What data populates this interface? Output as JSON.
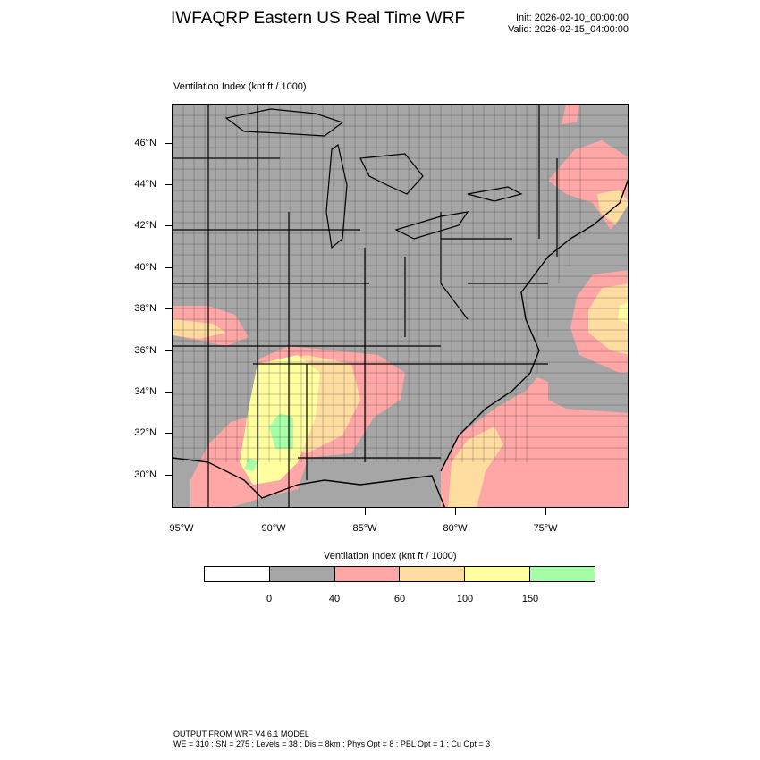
{
  "header": {
    "title": "IWFAQRP Eastern US Real Time WRF",
    "init": "Init: 2026-02-10_00:00:00",
    "valid": "Valid: 2026-02-15_04:00:00"
  },
  "plot": {
    "label": "Ventilation Index   (knt ft / 1000)",
    "lat_labels": [
      "46°N",
      "44°N",
      "42°N",
      "40°N",
      "38°N",
      "36°N",
      "34°N",
      "32°N",
      "30°N"
    ],
    "lon_labels": [
      "95°W",
      "90°W",
      "85°W",
      "80°W",
      "75°W"
    ]
  },
  "colorbar": {
    "title": "Ventilation Index  (knt ft / 1000)",
    "colors": [
      "#ffffff",
      "#a6a6a6",
      "#ffa6a6",
      "#ffdca0",
      "#ffffa0",
      "#a6ffa6"
    ],
    "tick_labels": [
      "0",
      "40",
      "60",
      "100",
      "150"
    ]
  },
  "footer": {
    "line1": "OUTPUT FROM WRF V4.6.1 MODEL",
    "line2": "WE = 310 ; SN = 275 ; Levels = 38 ; Dis = 8km ; Phys Opt = 8 ; PBL Opt = 1 ; Cu Opt = 3"
  }
}
